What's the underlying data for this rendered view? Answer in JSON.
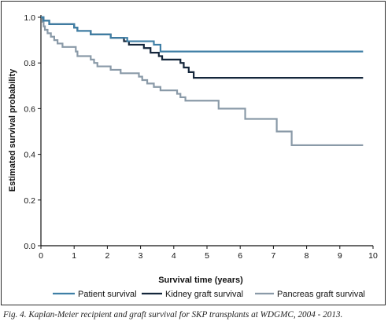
{
  "caption": "Fig. 4. Kaplan-Meier recipient and graft survival for SKP transplants at WDGMC, 2004 - 2013.",
  "chart_data": {
    "type": "line",
    "step": true,
    "title": "",
    "xlabel": "Survival time (years)",
    "ylabel": "Estimated survival probability",
    "xlim": [
      0,
      10
    ],
    "ylim": [
      0,
      1.0
    ],
    "xticks": [
      0,
      1,
      2,
      3,
      4,
      5,
      6,
      7,
      8,
      9,
      10
    ],
    "yticks": [
      0.0,
      0.2,
      0.4,
      0.6,
      0.8,
      1.0
    ],
    "xtick_labels": [
      "0",
      "1",
      "2",
      "3",
      "4",
      "5",
      "6",
      "7",
      "8",
      "9",
      "10"
    ],
    "ytick_labels": [
      "0.0",
      "0.2",
      "0.4",
      "0.6",
      "0.8",
      "1.0"
    ],
    "grid": false,
    "legend_position": "bottom",
    "series": [
      {
        "name": "Patient survival",
        "color": "#3f7fa6",
        "points": [
          [
            0,
            1.0
          ],
          [
            0.08,
            0.985
          ],
          [
            0.25,
            0.97
          ],
          [
            1.0,
            0.955
          ],
          [
            1.1,
            0.94
          ],
          [
            1.5,
            0.925
          ],
          [
            2.1,
            0.91
          ],
          [
            2.6,
            0.895
          ],
          [
            3.1,
            0.895
          ],
          [
            3.4,
            0.88
          ],
          [
            3.6,
            0.85
          ],
          [
            9.7,
            0.85
          ]
        ]
      },
      {
        "name": "Kidney graft survival",
        "color": "#14263b",
        "points": [
          [
            0,
            1.0
          ],
          [
            0.08,
            0.985
          ],
          [
            0.25,
            0.97
          ],
          [
            1.0,
            0.955
          ],
          [
            1.1,
            0.94
          ],
          [
            1.5,
            0.925
          ],
          [
            2.1,
            0.91
          ],
          [
            2.5,
            0.895
          ],
          [
            2.65,
            0.88
          ],
          [
            3.1,
            0.865
          ],
          [
            3.3,
            0.845
          ],
          [
            3.55,
            0.83
          ],
          [
            3.65,
            0.815
          ],
          [
            4.2,
            0.8
          ],
          [
            4.3,
            0.78
          ],
          [
            4.45,
            0.76
          ],
          [
            4.6,
            0.735
          ],
          [
            9.7,
            0.735
          ]
        ]
      },
      {
        "name": "Pancreas graft survival",
        "color": "#8a9aa8",
        "points": [
          [
            0,
            1.0
          ],
          [
            0.05,
            0.98
          ],
          [
            0.08,
            0.96
          ],
          [
            0.12,
            0.945
          ],
          [
            0.2,
            0.93
          ],
          [
            0.3,
            0.915
          ],
          [
            0.4,
            0.9
          ],
          [
            0.5,
            0.885
          ],
          [
            0.65,
            0.87
          ],
          [
            1.05,
            0.85
          ],
          [
            1.1,
            0.83
          ],
          [
            1.5,
            0.815
          ],
          [
            1.6,
            0.8
          ],
          [
            1.7,
            0.785
          ],
          [
            2.1,
            0.77
          ],
          [
            2.4,
            0.755
          ],
          [
            2.95,
            0.74
          ],
          [
            3.05,
            0.725
          ],
          [
            3.2,
            0.71
          ],
          [
            3.4,
            0.695
          ],
          [
            3.6,
            0.68
          ],
          [
            4.1,
            0.665
          ],
          [
            4.2,
            0.65
          ],
          [
            4.35,
            0.635
          ],
          [
            5.35,
            0.6
          ],
          [
            6.15,
            0.555
          ],
          [
            7.1,
            0.5
          ],
          [
            7.55,
            0.44
          ],
          [
            9.7,
            0.44
          ]
        ]
      }
    ]
  }
}
